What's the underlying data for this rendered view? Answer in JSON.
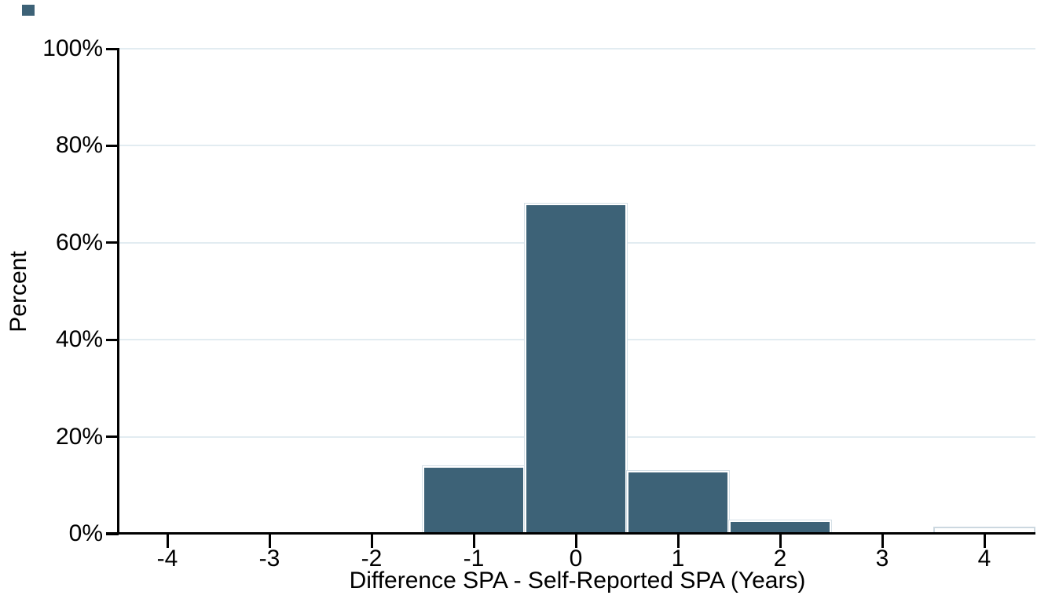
{
  "chart_data": {
    "type": "bar",
    "subtype": "histogram",
    "title": "",
    "xlabel": "Difference SPA - Self-Reported SPA (Years)",
    "ylabel": "Percent",
    "x_ticks": [
      -4,
      -3,
      -2,
      -1,
      0,
      1,
      2,
      3,
      4
    ],
    "y_ticks": [
      {
        "value": 0,
        "label": "0%"
      },
      {
        "value": 20,
        "label": "20%"
      },
      {
        "value": 40,
        "label": "40%"
      },
      {
        "value": 60,
        "label": "60%"
      },
      {
        "value": 80,
        "label": "80%"
      },
      {
        "value": 100,
        "label": "100%"
      }
    ],
    "ylim": [
      0,
      100
    ],
    "xlim": [
      -4.5,
      4.5
    ],
    "bin_width": 1,
    "bars": [
      {
        "x": -1,
        "value": 13.9,
        "style": "filled"
      },
      {
        "x": 0,
        "value": 68.0,
        "style": "filled"
      },
      {
        "x": 1,
        "value": 12.9,
        "style": "filled"
      },
      {
        "x": 2,
        "value": 2.8,
        "style": "filled"
      },
      {
        "x": 4,
        "value": 1.4,
        "style": "hollow"
      }
    ],
    "grid": "horizontal",
    "legend": null
  },
  "colors": {
    "bar_fill": "#3d6277",
    "bar_inner_border": "#ffffff",
    "bar_outline": "#d4dfe6",
    "hollow_fill": "#ffffff",
    "hollow_border": "#ccd8e0",
    "gridline": "#e2ecf1",
    "axis": "#000000",
    "background": "#ffffff",
    "corner_mark": "#3d6277"
  }
}
